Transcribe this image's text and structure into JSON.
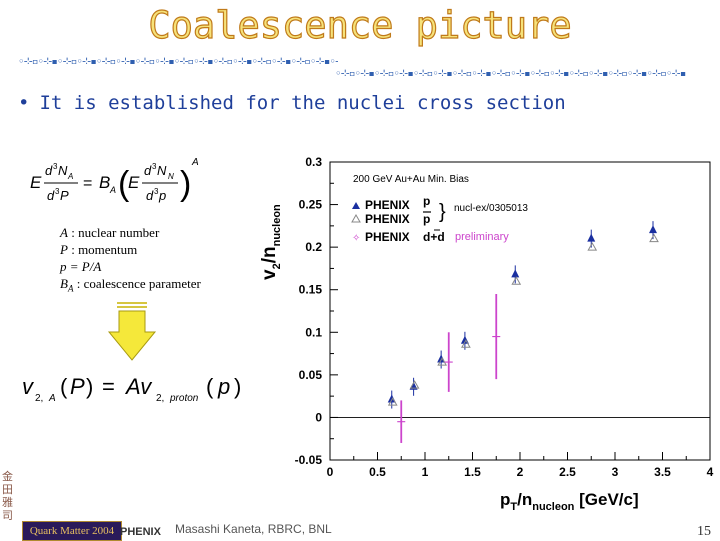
{
  "slide": {
    "title": "Coalescence picture",
    "bullet": "It is established for the nuclei cross section",
    "definitions": [
      {
        "sym": "A",
        "text": " : nuclear number"
      },
      {
        "sym": "P",
        "text": " : momentum"
      },
      {
        "sym": "p = P/A",
        "text": ""
      },
      {
        "sym": "B",
        "sub": "A",
        "text": " : coalescence parameter"
      }
    ],
    "footer": {
      "conference": "Quark Matter 2004",
      "experiment": "PHENIX",
      "author": "Masashi Kaneta, RBRC, BNL",
      "page": "15"
    },
    "colors": {
      "title_fill": "#f6e27a",
      "title_stroke": "#c07a1a",
      "bullet": "#1f3f9a",
      "arrow": "#f5e83a"
    }
  },
  "chart_data": {
    "type": "scatter",
    "xlabel": "pT/nnucleon [GeV/c]",
    "ylabel": "v2/nnucleon",
    "xlim": [
      0,
      4
    ],
    "ylim": [
      -0.05,
      0.3
    ],
    "xticks": [
      "0",
      "0.5",
      "1",
      "1.5",
      "2",
      "2.5",
      "3",
      "3.5",
      "4"
    ],
    "yticks": [
      "-0.05",
      "0",
      "0.05",
      "0.1",
      "0.15",
      "0.2",
      "0.25",
      "0.3"
    ],
    "annotation": "200 GeV Au+Au Min. Bias",
    "reference": "nucl-ex/0305013",
    "status": "preliminary",
    "legend_position": "top-left",
    "series": [
      {
        "name": "PHENIX p",
        "label": "PHENIX",
        "particle": "p",
        "color": "#1a2fa0",
        "marker": "filled-triangle",
        "points": [
          [
            0.65,
            0.021
          ],
          [
            0.88,
            0.036
          ],
          [
            1.17,
            0.068
          ],
          [
            1.42,
            0.09
          ],
          [
            1.95,
            0.168
          ],
          [
            2.75,
            0.21
          ],
          [
            3.4,
            0.22
          ]
        ]
      },
      {
        "name": "PHENIX p̄",
        "label": "PHENIX",
        "particle": "p",
        "bar": true,
        "color": "#888888",
        "marker": "open-triangle",
        "points": [
          [
            0.65,
            0.018
          ],
          [
            0.88,
            0.038
          ],
          [
            1.17,
            0.065
          ],
          [
            1.42,
            0.086
          ],
          [
            1.95,
            0.16
          ],
          [
            2.75,
            0.2
          ],
          [
            3.4,
            0.21
          ]
        ]
      },
      {
        "name": "PHENIX d+d̄",
        "label": "PHENIX",
        "particle": "d+d",
        "color": "#cc44cc",
        "marker": "open-cross",
        "points": [
          [
            0.75,
            -0.005,
            0.025
          ],
          [
            1.25,
            0.065,
            0.035
          ],
          [
            1.75,
            0.095,
            0.05
          ]
        ]
      }
    ]
  }
}
